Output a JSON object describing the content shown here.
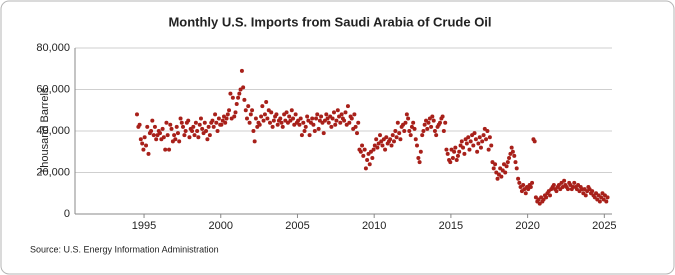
{
  "chart_data": {
    "type": "scatter",
    "title": "Monthly U.S. Imports from Saudi Arabia of Crude Oil",
    "y_label": "Thousand Barrels",
    "source": "Source: U.S. Energy Information Administration",
    "color": "#a8201a",
    "grid": true,
    "xlim": [
      1990.5,
      2025.5
    ],
    "xticks": [
      1995,
      2000,
      2005,
      2010,
      2015,
      2020,
      2025
    ],
    "ylim": [
      0,
      80000
    ],
    "yticks": [
      0,
      {
        "value": 20000,
        "label": "20,000"
      },
      {
        "value": 40000,
        "label": "40,000"
      },
      {
        "value": 60000,
        "label": "60,000"
      },
      {
        "value": 80000,
        "label": "80,000"
      }
    ],
    "x": [
      1994.54,
      1994.63,
      1994.71,
      1994.79,
      1994.88,
      1994.96,
      1995.04,
      1995.13,
      1995.21,
      1995.29,
      1995.38,
      1995.46,
      1995.54,
      1995.63,
      1995.71,
      1995.79,
      1995.88,
      1995.96,
      1996.04,
      1996.13,
      1996.21,
      1996.29,
      1996.38,
      1996.46,
      1996.54,
      1996.63,
      1996.71,
      1996.79,
      1996.88,
      1996.96,
      1997.04,
      1997.13,
      1997.21,
      1997.29,
      1997.38,
      1997.46,
      1997.54,
      1997.63,
      1997.71,
      1997.79,
      1997.88,
      1997.96,
      1998.04,
      1998.13,
      1998.21,
      1998.29,
      1998.38,
      1998.46,
      1998.54,
      1998.63,
      1998.71,
      1998.79,
      1998.88,
      1998.96,
      1999.04,
      1999.13,
      1999.21,
      1999.29,
      1999.38,
      1999.46,
      1999.54,
      1999.63,
      1999.71,
      1999.79,
      1999.88,
      1999.96,
      2000.04,
      2000.13,
      2000.21,
      2000.29,
      2000.38,
      2000.46,
      2000.54,
      2000.63,
      2000.71,
      2000.79,
      2000.88,
      2000.96,
      2001.04,
      2001.13,
      2001.21,
      2001.29,
      2001.38,
      2001.46,
      2001.54,
      2001.63,
      2001.71,
      2001.79,
      2001.88,
      2001.96,
      2002.04,
      2002.13,
      2002.21,
      2002.29,
      2002.38,
      2002.46,
      2002.54,
      2002.63,
      2002.71,
      2002.79,
      2002.88,
      2002.96,
      2003.04,
      2003.13,
      2003.21,
      2003.29,
      2003.38,
      2003.46,
      2003.54,
      2003.63,
      2003.71,
      2003.79,
      2003.88,
      2003.96,
      2004.04,
      2004.13,
      2004.21,
      2004.29,
      2004.38,
      2004.46,
      2004.54,
      2004.63,
      2004.71,
      2004.79,
      2004.88,
      2004.96,
      2005.04,
      2005.13,
      2005.21,
      2005.29,
      2005.38,
      2005.46,
      2005.54,
      2005.63,
      2005.71,
      2005.79,
      2005.88,
      2005.96,
      2006.04,
      2006.13,
      2006.21,
      2006.29,
      2006.38,
      2006.46,
      2006.54,
      2006.63,
      2006.71,
      2006.79,
      2006.88,
      2006.96,
      2007.04,
      2007.13,
      2007.21,
      2007.29,
      2007.38,
      2007.46,
      2007.54,
      2007.63,
      2007.71,
      2007.79,
      2007.88,
      2007.96,
      2008.04,
      2008.13,
      2008.21,
      2008.29,
      2008.38,
      2008.46,
      2008.54,
      2008.63,
      2008.71,
      2008.79,
      2008.88,
      2008.96,
      2009.04,
      2009.13,
      2009.21,
      2009.29,
      2009.38,
      2009.46,
      2009.54,
      2009.63,
      2009.71,
      2009.79,
      2009.88,
      2009.96,
      2010.04,
      2010.13,
      2010.21,
      2010.29,
      2010.38,
      2010.46,
      2010.54,
      2010.63,
      2010.71,
      2010.79,
      2010.88,
      2010.96,
      2011.04,
      2011.13,
      2011.21,
      2011.29,
      2011.38,
      2011.46,
      2011.54,
      2011.63,
      2011.71,
      2011.79,
      2011.88,
      2011.96,
      2012.04,
      2012.13,
      2012.21,
      2012.29,
      2012.38,
      2012.46,
      2012.54,
      2012.63,
      2012.71,
      2012.79,
      2012.88,
      2012.96,
      2013.04,
      2013.13,
      2013.21,
      2013.29,
      2013.38,
      2013.46,
      2013.54,
      2013.63,
      2013.71,
      2013.79,
      2013.88,
      2013.96,
      2014.04,
      2014.13,
      2014.21,
      2014.29,
      2014.38,
      2014.46,
      2014.54,
      2014.63,
      2014.71,
      2014.79,
      2014.88,
      2014.96,
      2015.04,
      2015.13,
      2015.21,
      2015.29,
      2015.38,
      2015.46,
      2015.54,
      2015.63,
      2015.71,
      2015.79,
      2015.88,
      2015.96,
      2016.04,
      2016.13,
      2016.21,
      2016.29,
      2016.38,
      2016.46,
      2016.54,
      2016.63,
      2016.71,
      2016.79,
      2016.88,
      2016.96,
      2017.04,
      2017.13,
      2017.21,
      2017.29,
      2017.38,
      2017.46,
      2017.54,
      2017.63,
      2017.71,
      2017.79,
      2017.88,
      2017.96,
      2018.04,
      2018.13,
      2018.21,
      2018.29,
      2018.38,
      2018.46,
      2018.54,
      2018.63,
      2018.71,
      2018.79,
      2018.88,
      2018.96,
      2019.04,
      2019.13,
      2019.21,
      2019.29,
      2019.38,
      2019.46,
      2019.54,
      2019.63,
      2019.71,
      2019.79,
      2019.88,
      2019.96,
      2020.04,
      2020.13,
      2020.21,
      2020.29,
      2020.38,
      2020.46,
      2020.54,
      2020.63,
      2020.71,
      2020.79,
      2020.88,
      2020.96,
      2021.04,
      2021.13,
      2021.21,
      2021.29,
      2021.38,
      2021.46,
      2021.54,
      2021.63,
      2021.71,
      2021.79,
      2021.88,
      2021.96,
      2022.04,
      2022.13,
      2022.21,
      2022.29,
      2022.38,
      2022.46,
      2022.54,
      2022.63,
      2022.71,
      2022.79,
      2022.88,
      2022.96,
      2023.04,
      2023.13,
      2023.21,
      2023.29,
      2023.38,
      2023.46,
      2023.54,
      2023.63,
      2023.71,
      2023.79,
      2023.88,
      2023.96,
      2024.04,
      2024.13,
      2024.21,
      2024.29,
      2024.38,
      2024.46,
      2024.54,
      2024.63,
      2024.71,
      2024.79,
      2024.88,
      2024.96,
      2025.04,
      2025.13,
      2025.21
    ],
    "values": [
      48000,
      42000,
      43000,
      36000,
      34000,
      31000,
      37000,
      33000,
      42000,
      29000,
      39000,
      40000,
      45000,
      38000,
      42000,
      36000,
      38000,
      40000,
      39000,
      36000,
      41000,
      37000,
      31000,
      44000,
      38000,
      31000,
      43000,
      41000,
      35000,
      38000,
      36000,
      42000,
      39000,
      35000,
      46000,
      44000,
      42000,
      38000,
      40000,
      44000,
      45000,
      37000,
      41000,
      40000,
      42000,
      38000,
      44000,
      40000,
      37000,
      43000,
      46000,
      41000,
      39000,
      44000,
      40000,
      36000,
      42000,
      38000,
      44000,
      45000,
      42000,
      48000,
      44000,
      40000,
      46000,
      43000,
      43000,
      45000,
      47000,
      44000,
      46000,
      48000,
      50000,
      58000,
      46000,
      56000,
      47000,
      49000,
      53000,
      56000,
      58000,
      60000,
      69000,
      61000,
      55000,
      50000,
      46000,
      52000,
      44000,
      48000,
      50000,
      40000,
      35000,
      46000,
      42000,
      44000,
      43000,
      47000,
      52000,
      45000,
      48000,
      54000,
      46000,
      50000,
      44000,
      49000,
      42000,
      45000,
      47000,
      48000,
      43000,
      45000,
      46000,
      44000,
      42000,
      48000,
      45000,
      49000,
      44000,
      47000,
      45000,
      50000,
      46000,
      43000,
      48000,
      44000,
      45000,
      43000,
      46000,
      38000,
      44000,
      40000,
      42000,
      47000,
      45000,
      38000,
      44000,
      46000,
      43000,
      40000,
      46000,
      48000,
      41000,
      45000,
      47000,
      44000,
      39000,
      45000,
      48000,
      46000,
      44000,
      47000,
      42000,
      46000,
      49000,
      43000,
      45000,
      50000,
      47000,
      44000,
      48000,
      46000,
      45000,
      49000,
      43000,
      52000,
      44000,
      47000,
      46000,
      41000,
      48000,
      42000,
      39000,
      44000,
      31000,
      30000,
      33000,
      28000,
      31000,
      22000,
      26000,
      29000,
      24000,
      30000,
      27000,
      31000,
      33000,
      36000,
      32000,
      34000,
      38000,
      35000,
      33000,
      36000,
      31000,
      37000,
      34000,
      35000,
      36000,
      33000,
      38000,
      35000,
      40000,
      37000,
      44000,
      39000,
      36000,
      42000,
      43000,
      40000,
      44000,
      48000,
      46000,
      40000,
      38000,
      42000,
      44000,
      41000,
      36000,
      33000,
      27000,
      25000,
      30000,
      38000,
      40000,
      43000,
      45000,
      41000,
      44000,
      46000,
      42000,
      47000,
      45000,
      40000,
      38000,
      42000,
      43000,
      44000,
      46000,
      47000,
      40000,
      44000,
      31000,
      29000,
      26000,
      25000,
      31000,
      27000,
      30000,
      32000,
      26000,
      28000,
      30000,
      33000,
      35000,
      32000,
      29000,
      36000,
      34000,
      37000,
      31000,
      35000,
      38000,
      33000,
      39000,
      36000,
      30000,
      34000,
      37000,
      32000,
      35000,
      38000,
      41000,
      36000,
      40000,
      31000,
      37000,
      33000,
      25000,
      22000,
      24000,
      20000,
      17000,
      19000,
      22000,
      18000,
      21000,
      24000,
      20000,
      23000,
      25000,
      27000,
      29000,
      32000,
      30000,
      28000,
      25000,
      22000,
      17000,
      15000,
      13000,
      11000,
      14000,
      12000,
      10000,
      13000,
      12000,
      14000,
      13000,
      15000,
      36000,
      35000,
      8000,
      6000,
      7000,
      5000,
      8000,
      6000,
      7000,
      9000,
      8000,
      10000,
      11000,
      9000,
      12000,
      13000,
      14000,
      12000,
      11000,
      13000,
      14000,
      12000,
      15000,
      13000,
      16000,
      14000,
      13000,
      12000,
      15000,
      14000,
      12000,
      13000,
      15000,
      13000,
      12000,
      14000,
      11000,
      13000,
      12000,
      10000,
      12000,
      9000,
      11000,
      13000,
      12000,
      10000,
      11000,
      9000,
      8000,
      10000,
      7000,
      9000,
      6000,
      8000,
      10000,
      7000,
      9000,
      6000,
      8000
    ]
  }
}
